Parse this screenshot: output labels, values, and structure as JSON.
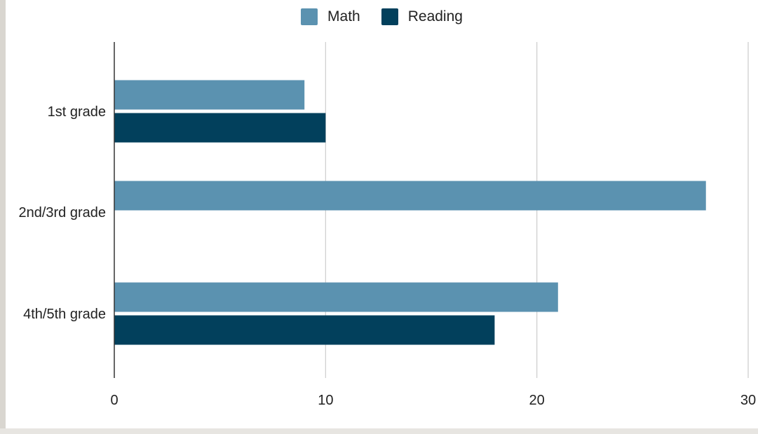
{
  "chart_data": {
    "type": "bar",
    "orientation": "horizontal",
    "title": "",
    "xlabel": "",
    "ylabel": "",
    "categories": [
      "1st grade",
      "2nd/3rd grade",
      "4th/5th grade"
    ],
    "series": [
      {
        "name": "Math",
        "values": [
          9,
          28,
          21
        ],
        "color": "#5b92b0"
      },
      {
        "name": "Reading",
        "values": [
          10,
          0,
          18
        ],
        "color": "#02405c"
      }
    ],
    "xlim": [
      0,
      30
    ],
    "xticks": [
      0,
      10,
      20,
      30
    ],
    "grid": true,
    "legend_position": "top-center"
  }
}
